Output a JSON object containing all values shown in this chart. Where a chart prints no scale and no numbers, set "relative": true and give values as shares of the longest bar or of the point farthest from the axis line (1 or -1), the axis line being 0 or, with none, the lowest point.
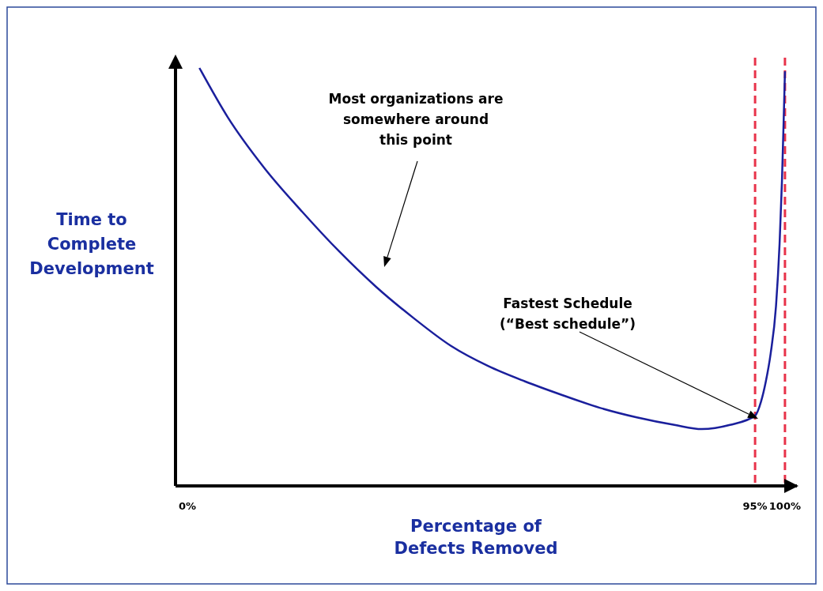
{
  "chart_data": {
    "type": "line",
    "relative": true,
    "xlabel": "Percentage of\nDefects Removed",
    "ylabel": "Time to\nComplete\nDevelopment",
    "xlim": [
      -2,
      102
    ],
    "xticks": [
      {
        "value": 0,
        "label": "0%"
      },
      {
        "value": 95,
        "label": "95%"
      },
      {
        "value": 100,
        "label": "100%"
      }
    ],
    "x": [
      2.0,
      6.7,
      12.9,
      19.2,
      25.4,
      31.6,
      37.9,
      44.1,
      50.3,
      56.5,
      62.8,
      69.0,
      75.2,
      81.5,
      86.1,
      90.8,
      95,
      96.0,
      96.8,
      97.6,
      98.5,
      99.1,
      99.5,
      99.8,
      100
    ],
    "series": [
      {
        "color": "#1a1f9c",
        "values": [
          1,
          0.883,
          0.76,
          0.656,
          0.561,
          0.476,
          0.401,
          0.335,
          0.287,
          0.25,
          0.217,
          0.187,
          0.164,
          0.146,
          0.136,
          0.146,
          0.168,
          0.202,
          0.25,
          0.316,
          0.43,
          0.58,
          0.73,
          0.883,
          0.992
        ]
      }
    ],
    "ref_lines": [
      {
        "axis": "x",
        "value": 95,
        "color": "#e8334a",
        "line_style": "dashed"
      },
      {
        "axis": "x",
        "value": 100,
        "color": "#e8334a",
        "line_style": "dashed"
      }
    ],
    "annotations": [
      "Most organizations are\nsomewhere around\nthis point",
      "Fastest Schedule\n(“Best schedule”)"
    ],
    "grid": false,
    "marker": "none",
    "line_style": "solid"
  }
}
